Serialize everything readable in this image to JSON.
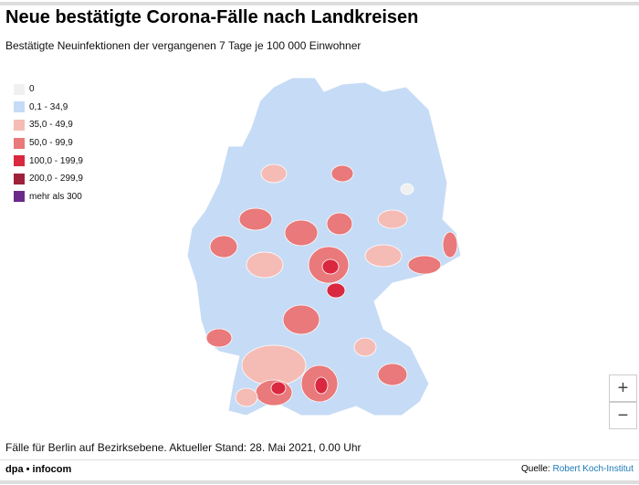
{
  "header": {
    "title": "Neue bestätigte Corona-Fälle nach Landkreisen",
    "subtitle": "Bestätigte Neuinfektionen der vergangenen 7 Tage je 100 000 Einwohner"
  },
  "legend": [
    {
      "label": "0",
      "color": "#f0f0f0"
    },
    {
      "label": "0,1 - 34,9",
      "color": "#c6dbf5"
    },
    {
      "label": "35,0 - 49,9",
      "color": "#f5bcb5"
    },
    {
      "label": "50,0 - 99,9",
      "color": "#e9797a"
    },
    {
      "label": "100,0 - 199,9",
      "color": "#d9283f"
    },
    {
      "label": "200,0 - 299,9",
      "color": "#a0213a"
    },
    {
      "label": "mehr als 300",
      "color": "#6a2a8a"
    }
  ],
  "zoom": {
    "in": "+",
    "out": "−"
  },
  "footnote": "Fälle für Berlin auf Bezirksebene. Aktueller Stand: 28. Mai 2021, 0.00 Uhr",
  "footer": {
    "credit": "dpa • infocom",
    "source_label": "Quelle:",
    "source_link": "Robert Koch-Institut"
  }
}
